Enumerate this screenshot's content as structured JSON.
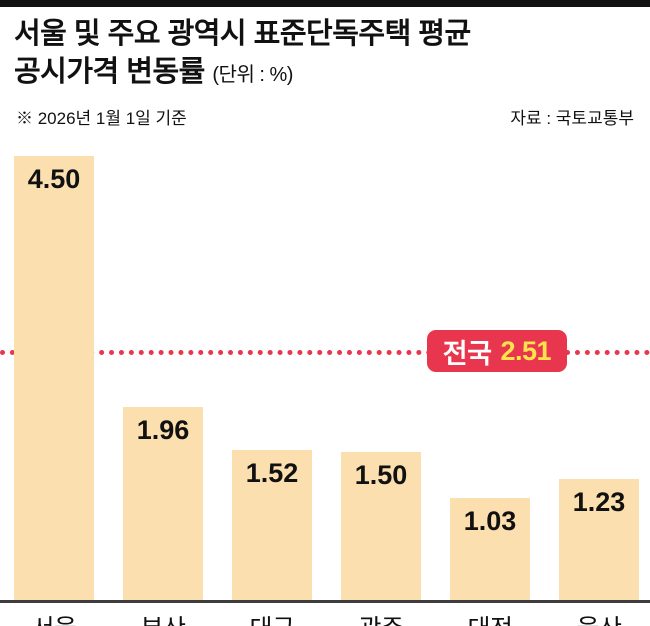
{
  "header": {
    "title_line1": "서울 및 주요 광역시 표준단독주택 평균",
    "title_line2": "공시가격 변동률",
    "title_unit": "(단위 : %)",
    "note": "※ 2026년 1월 1일 기준",
    "source": "자료 : 국토교통부"
  },
  "chart_data": {
    "type": "bar",
    "title": "서울 및 주요 광역시 표준단독주택 평균 공시가격 변동률",
    "unit": "%",
    "categories": [
      "서울",
      "부산",
      "대구",
      "광주",
      "대전",
      "울산"
    ],
    "values": [
      4.5,
      1.96,
      1.52,
      1.5,
      1.03,
      1.23
    ],
    "value_labels": [
      "4.50",
      "1.96",
      "1.52",
      "1.50",
      "1.03",
      "1.23"
    ],
    "xlabel": "",
    "ylabel": "",
    "ylim": [
      0,
      4.6
    ],
    "grid": false,
    "legend": false,
    "bar_color": "#fbdfae",
    "reference_line": {
      "label": "전국",
      "value": 2.51,
      "value_label": "2.51",
      "color": "#e8364e",
      "badge_label_color": "#ffffff",
      "badge_value_color": "#ffe34d"
    }
  }
}
